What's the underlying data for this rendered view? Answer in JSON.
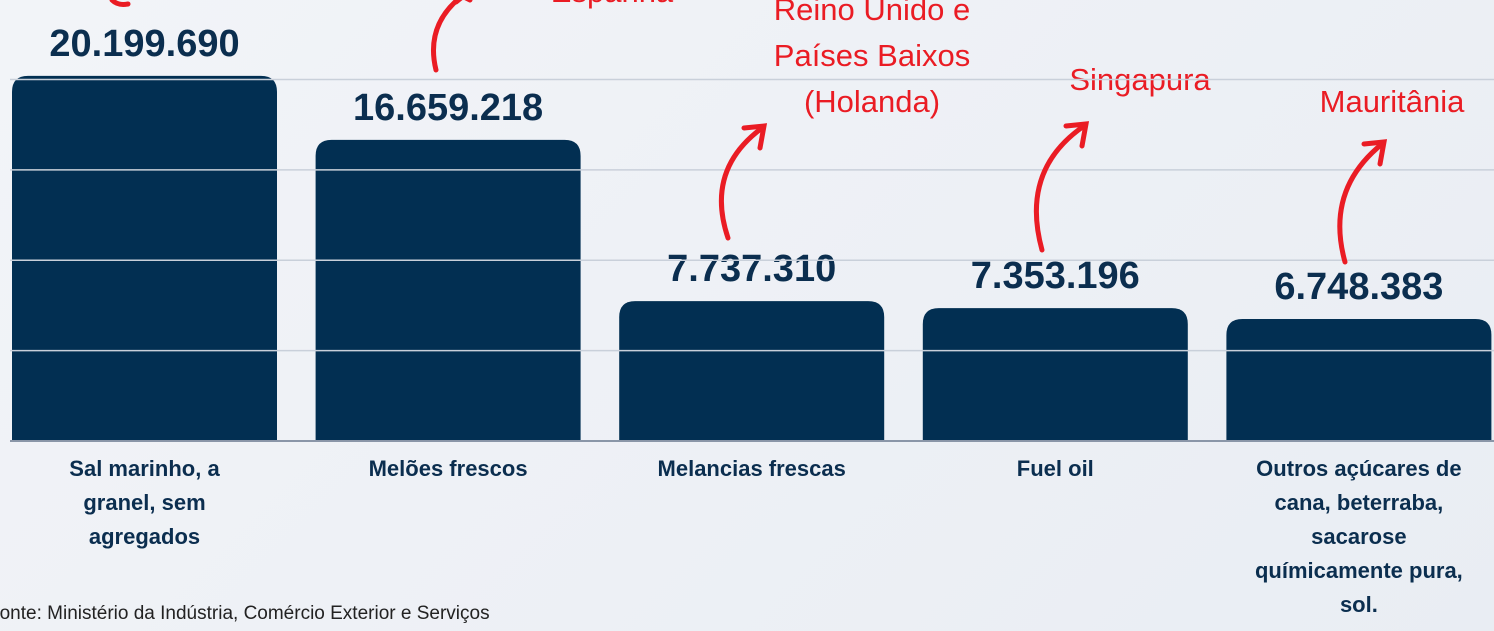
{
  "chart_data": {
    "type": "bar",
    "categories": [
      "Sal marinho, a granel, sem agregados",
      "Melões frescos",
      "Melancias frescas",
      "Fuel oil",
      "Outros açúcares de cana, beterraba, sacarose químicamente pura, sol."
    ],
    "values": [
      20199690,
      16659218,
      7737310,
      7353196,
      6748383
    ],
    "value_labels": [
      "20.199.690",
      "16.659.218",
      "7.737.310",
      "7.353.196",
      "6.748.383"
    ],
    "color": "#022f52",
    "ylim": [
      0,
      24400000
    ],
    "yticks": [
      0,
      5000000,
      10000000,
      15000000,
      20000000
    ],
    "grid": true,
    "annotations": [
      null,
      [
        "Espanha"
      ],
      [
        "Reino Unido e",
        "Países Baixos",
        "(Holanda)"
      ],
      [
        "Singapura"
      ],
      [
        "Mauritânia"
      ]
    ],
    "annotation_color": "#ea1c24",
    "source": "Fonte: Ministério da Indústria, Comércio Exterior e Serviços"
  }
}
